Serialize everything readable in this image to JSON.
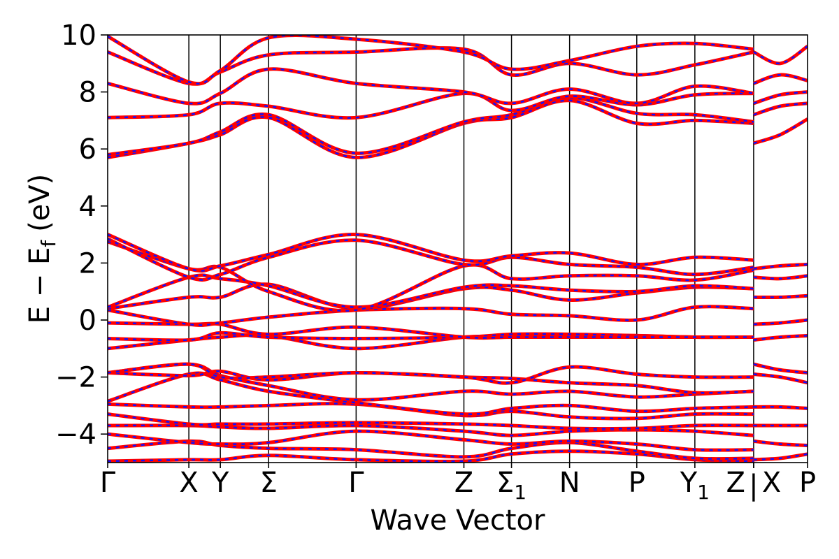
{
  "chart_data": {
    "type": "line",
    "title": "",
    "xlabel": "Wave Vector",
    "ylabel": "E − E",
    "ylabel_sub": "f",
    "ylabel_unit": "(eV)",
    "ylim": [
      -5,
      10
    ],
    "yticks": [
      -4,
      -2,
      0,
      2,
      4,
      6,
      8,
      10
    ],
    "ytick_labels": [
      "−4",
      "−2",
      "0",
      "2",
      "4",
      "6",
      "8",
      "10"
    ],
    "kpath": [
      {
        "label": "Γ",
        "sub": "",
        "x": 0
      },
      {
        "label": "X",
        "sub": "",
        "x": 0.116
      },
      {
        "label": "Y",
        "sub": "",
        "x": 0.161
      },
      {
        "label": "Σ",
        "sub": "",
        "x": 0.23
      },
      {
        "label": "Γ",
        "sub": "",
        "x": 0.355
      },
      {
        "label": "Z",
        "sub": "",
        "x": 0.509
      },
      {
        "label": "Σ",
        "sub": "1",
        "x": 0.577
      },
      {
        "label": "N",
        "sub": "",
        "x": 0.66
      },
      {
        "label": "P",
        "sub": "",
        "x": 0.756
      },
      {
        "label": "Y",
        "sub": "1",
        "x": 0.839
      },
      {
        "label": "Z",
        "sub": "",
        "x": 0.923
      },
      {
        "label": "X",
        "sub": "",
        "x": 0.923
      },
      {
        "label": "P",
        "sub": "",
        "x": 1.0
      }
    ],
    "break_mark": "|",
    "vertical_lines": [
      0.116,
      0.161,
      0.23,
      0.355,
      0.509,
      0.577,
      0.66,
      0.756,
      0.839,
      0.923
    ],
    "series_colors": {
      "solid": "#ff0000",
      "dashed": "#1010ff"
    },
    "bands": [
      {
        "x": [
          0,
          0.116,
          0.161,
          0.23,
          0.355,
          0.509,
          0.577,
          0.66,
          0.756,
          0.839,
          0.923
        ],
        "y": [
          -4.95,
          -4.9,
          -4.9,
          -4.75,
          -4.9,
          -4.95,
          -4.7,
          -4.6,
          -4.7,
          -4.9,
          -4.95
        ]
      },
      {
        "x": [
          0,
          0.116,
          0.161,
          0.23,
          0.355,
          0.509,
          0.577,
          0.66,
          0.756,
          0.839,
          0.923
        ],
        "y": [
          -4.5,
          -4.25,
          -4.4,
          -4.5,
          -4.55,
          -4.8,
          -4.5,
          -4.3,
          -4.6,
          -4.85,
          -4.85
        ]
      },
      {
        "x": [
          0,
          0.116,
          0.161,
          0.23,
          0.355,
          0.509,
          0.577,
          0.66,
          0.756,
          0.839,
          0.923
        ],
        "y": [
          -4.0,
          -4.3,
          -4.35,
          -4.3,
          -3.9,
          -4.2,
          -4.35,
          -4.25,
          -4.35,
          -4.55,
          -4.55
        ]
      },
      {
        "x": [
          0,
          0.116,
          0.161,
          0.23,
          0.355,
          0.509,
          0.577,
          0.66,
          0.756,
          0.839,
          0.923
        ],
        "y": [
          -3.7,
          -3.7,
          -3.75,
          -3.8,
          -3.7,
          -3.9,
          -4.05,
          -3.9,
          -3.85,
          -3.9,
          -4.05
        ]
      },
      {
        "x": [
          0,
          0.116,
          0.161,
          0.23,
          0.355,
          0.509,
          0.577,
          0.66,
          0.756,
          0.839,
          0.923
        ],
        "y": [
          -3.3,
          -3.65,
          -3.65,
          -3.65,
          -3.6,
          -3.65,
          -3.7,
          -3.8,
          -3.8,
          -3.7,
          -3.7
        ]
      },
      {
        "x": [
          0,
          0.116,
          0.161,
          0.23,
          0.355,
          0.509,
          0.577,
          0.66,
          0.756,
          0.839,
          0.923
        ],
        "y": [
          -2.95,
          -3.05,
          -3.05,
          -3.0,
          -2.95,
          -3.35,
          -3.2,
          -3.4,
          -3.45,
          -3.3,
          -3.3
        ]
      },
      {
        "x": [
          0,
          0.116,
          0.161,
          0.23,
          0.355,
          0.509,
          0.577,
          0.66,
          0.756,
          0.839,
          0.923
        ],
        "y": [
          -2.85,
          -1.9,
          -2.1,
          -2.5,
          -2.9,
          -3.3,
          -3.1,
          -3.0,
          -3.2,
          -3.1,
          -3.05
        ]
      },
      {
        "x": [
          0,
          0.116,
          0.161,
          0.23,
          0.355,
          0.509,
          0.577,
          0.66,
          0.756,
          0.839,
          0.923
        ],
        "y": [
          -1.85,
          -1.55,
          -1.95,
          -2.3,
          -2.8,
          -2.5,
          -2.6,
          -2.5,
          -2.7,
          -2.6,
          -2.5
        ]
      },
      {
        "x": [
          0,
          0.116,
          0.161,
          0.23,
          0.355,
          0.509,
          0.577,
          0.66,
          0.756,
          0.839,
          0.923
        ],
        "y": [
          -1.85,
          -1.95,
          -1.8,
          -2.1,
          -1.85,
          -2.0,
          -2.05,
          -2.2,
          -2.3,
          -2.55,
          -2.5
        ]
      },
      {
        "x": [
          0,
          0.116,
          0.161,
          0.23,
          0.355,
          0.509,
          0.577,
          0.66,
          0.756,
          0.839,
          0.923
        ],
        "y": [
          -1.85,
          -1.55,
          -2.0,
          -2.0,
          -1.85,
          -2.0,
          -2.2,
          -1.65,
          -1.9,
          -2.0,
          -2.0
        ]
      },
      {
        "x": [
          0,
          0.116,
          0.161,
          0.23,
          0.355,
          0.509,
          0.577,
          0.66,
          0.756,
          0.839,
          0.923
        ],
        "y": [
          -1.0,
          -0.7,
          -0.6,
          -0.55,
          -1.0,
          -0.6,
          -0.6,
          -0.55,
          -0.55,
          -0.6,
          -0.6
        ]
      },
      {
        "x": [
          0,
          0.116,
          0.161,
          0.23,
          0.355,
          0.509,
          0.577,
          0.66,
          0.756,
          0.839,
          0.923
        ],
        "y": [
          -0.65,
          -0.7,
          -0.45,
          -0.6,
          -0.65,
          -0.6,
          -0.5,
          -0.5,
          -0.55,
          -0.6,
          -0.6
        ]
      },
      {
        "x": [
          0,
          0.116,
          0.161,
          0.23,
          0.355,
          0.509,
          0.577,
          0.66,
          0.756,
          0.839,
          0.923
        ],
        "y": [
          -0.1,
          -0.15,
          -0.15,
          -0.5,
          -0.25,
          -0.6,
          -0.6,
          -0.6,
          -0.6,
          -0.6,
          -0.6
        ]
      },
      {
        "x": [
          0,
          0.116,
          0.161,
          0.23,
          0.355,
          0.509,
          0.577,
          0.66,
          0.756,
          0.839,
          0.923
        ],
        "y": [
          0.35,
          -0.15,
          -0.1,
          0.1,
          0.35,
          0.4,
          0.2,
          0.15,
          0.0,
          0.45,
          0.4
        ]
      },
      {
        "x": [
          0,
          0.116,
          0.161,
          0.23,
          0.355,
          0.509,
          0.577,
          0.66,
          0.756,
          0.839,
          0.923
        ],
        "y": [
          0.4,
          0.8,
          0.8,
          1.25,
          0.4,
          1.1,
          1.05,
          0.7,
          0.95,
          1.15,
          1.1
        ]
      },
      {
        "x": [
          0,
          0.116,
          0.161,
          0.23,
          0.355,
          0.509,
          0.577,
          0.66,
          0.756,
          0.839,
          0.923
        ],
        "y": [
          0.45,
          1.5,
          1.45,
          1.2,
          0.45,
          1.15,
          1.2,
          1.05,
          1.0,
          1.2,
          1.1
        ]
      },
      {
        "x": [
          0,
          0.116,
          0.161,
          0.23,
          0.355,
          0.509,
          0.577,
          0.66,
          0.756,
          0.839,
          0.923
        ],
        "y": [
          2.75,
          1.8,
          1.85,
          1.0,
          0.35,
          1.9,
          1.45,
          1.55,
          1.55,
          1.4,
          1.75
        ]
      },
      {
        "x": [
          0,
          0.116,
          0.161,
          0.23,
          0.355,
          0.509,
          0.577,
          0.66,
          0.756,
          0.839,
          0.923
        ],
        "y": [
          2.85,
          1.5,
          1.6,
          2.2,
          2.8,
          1.95,
          2.2,
          1.95,
          1.85,
          1.6,
          1.85
        ]
      },
      {
        "x": [
          0,
          0.116,
          0.161,
          0.23,
          0.355,
          0.509,
          0.577,
          0.66,
          0.756,
          0.839,
          0.923
        ],
        "y": [
          3.0,
          1.8,
          1.9,
          2.3,
          3.0,
          2.1,
          2.25,
          2.35,
          1.95,
          2.2,
          2.1
        ]
      },
      {
        "x": [
          0,
          0.116,
          0.161,
          0.23,
          0.355,
          0.509,
          0.577,
          0.66,
          0.756,
          0.839,
          0.923
        ],
        "y": [
          5.7,
          6.2,
          6.5,
          7.1,
          5.7,
          6.9,
          7.1,
          7.7,
          6.9,
          7.0,
          6.9
        ]
      },
      {
        "x": [
          0,
          0.116,
          0.161,
          0.23,
          0.355,
          0.509,
          0.577,
          0.66,
          0.756,
          0.839,
          0.923
        ],
        "y": [
          5.8,
          6.2,
          6.6,
          7.2,
          5.85,
          6.95,
          7.2,
          7.8,
          7.25,
          7.2,
          6.95
        ]
      },
      {
        "x": [
          0,
          0.116,
          0.161,
          0.23,
          0.355,
          0.509,
          0.577,
          0.66,
          0.756,
          0.839,
          0.923
        ],
        "y": [
          7.1,
          7.2,
          7.6,
          7.5,
          7.1,
          7.95,
          7.35,
          7.85,
          7.55,
          7.9,
          7.95
        ]
      },
      {
        "x": [
          0,
          0.116,
          0.161,
          0.23,
          0.355,
          0.509,
          0.577,
          0.66,
          0.756,
          0.839,
          0.923
        ],
        "y": [
          8.3,
          7.6,
          7.95,
          8.8,
          8.3,
          8.0,
          7.6,
          8.1,
          7.6,
          8.2,
          7.95
        ]
      },
      {
        "x": [
          0,
          0.116,
          0.161,
          0.23,
          0.355,
          0.509,
          0.577,
          0.66,
          0.756,
          0.839,
          0.923
        ],
        "y": [
          9.4,
          8.3,
          8.7,
          9.3,
          9.4,
          9.5,
          8.6,
          9.0,
          8.6,
          8.95,
          9.4
        ]
      },
      {
        "x": [
          0,
          0.116,
          0.161,
          0.23,
          0.355,
          0.509,
          0.577,
          0.66,
          0.756,
          0.839,
          0.923
        ],
        "y": [
          9.95,
          8.35,
          8.75,
          9.9,
          9.85,
          9.4,
          8.8,
          9.1,
          9.6,
          9.7,
          9.5
        ]
      },
      {
        "x": [
          0.923,
          0.961,
          1.0
        ],
        "y": [
          -4.9,
          -4.85,
          -4.7
        ]
      },
      {
        "x": [
          0.923,
          0.961,
          1.0
        ],
        "y": [
          -4.25,
          -4.35,
          -4.4
        ]
      },
      {
        "x": [
          0.923,
          0.961,
          1.0
        ],
        "y": [
          -3.7,
          -3.7,
          -3.7
        ]
      },
      {
        "x": [
          0.923,
          0.961,
          1.0
        ],
        "y": [
          -3.05,
          -3.05,
          -3.1
        ]
      },
      {
        "x": [
          0.923,
          0.961,
          1.0
        ],
        "y": [
          -1.9,
          -2.0,
          -2.2
        ]
      },
      {
        "x": [
          0.923,
          0.961,
          1.0
        ],
        "y": [
          -1.55,
          -1.75,
          -1.85
        ]
      },
      {
        "x": [
          0.923,
          0.961,
          1.0
        ],
        "y": [
          -0.7,
          -0.6,
          -0.55
        ]
      },
      {
        "x": [
          0.923,
          0.961,
          1.0
        ],
        "y": [
          -0.15,
          -0.1,
          0.0
        ]
      },
      {
        "x": [
          0.923,
          0.961,
          1.0
        ],
        "y": [
          0.8,
          0.8,
          0.85
        ]
      },
      {
        "x": [
          0.923,
          0.961,
          1.0
        ],
        "y": [
          1.5,
          1.45,
          1.55
        ]
      },
      {
        "x": [
          0.923,
          0.961,
          1.0
        ],
        "y": [
          1.8,
          1.9,
          1.95
        ]
      },
      {
        "x": [
          0.923,
          0.961,
          1.0
        ],
        "y": [
          6.2,
          6.5,
          7.05
        ]
      },
      {
        "x": [
          0.923,
          0.961,
          1.0
        ],
        "y": [
          7.2,
          7.5,
          7.6
        ]
      },
      {
        "x": [
          0.923,
          0.961,
          1.0
        ],
        "y": [
          7.6,
          7.9,
          8.0
        ]
      },
      {
        "x": [
          0.923,
          0.961,
          1.0
        ],
        "y": [
          8.3,
          8.6,
          8.4
        ]
      },
      {
        "x": [
          0.923,
          0.961,
          1.0
        ],
        "y": [
          9.4,
          9.0,
          9.6
        ]
      }
    ]
  }
}
